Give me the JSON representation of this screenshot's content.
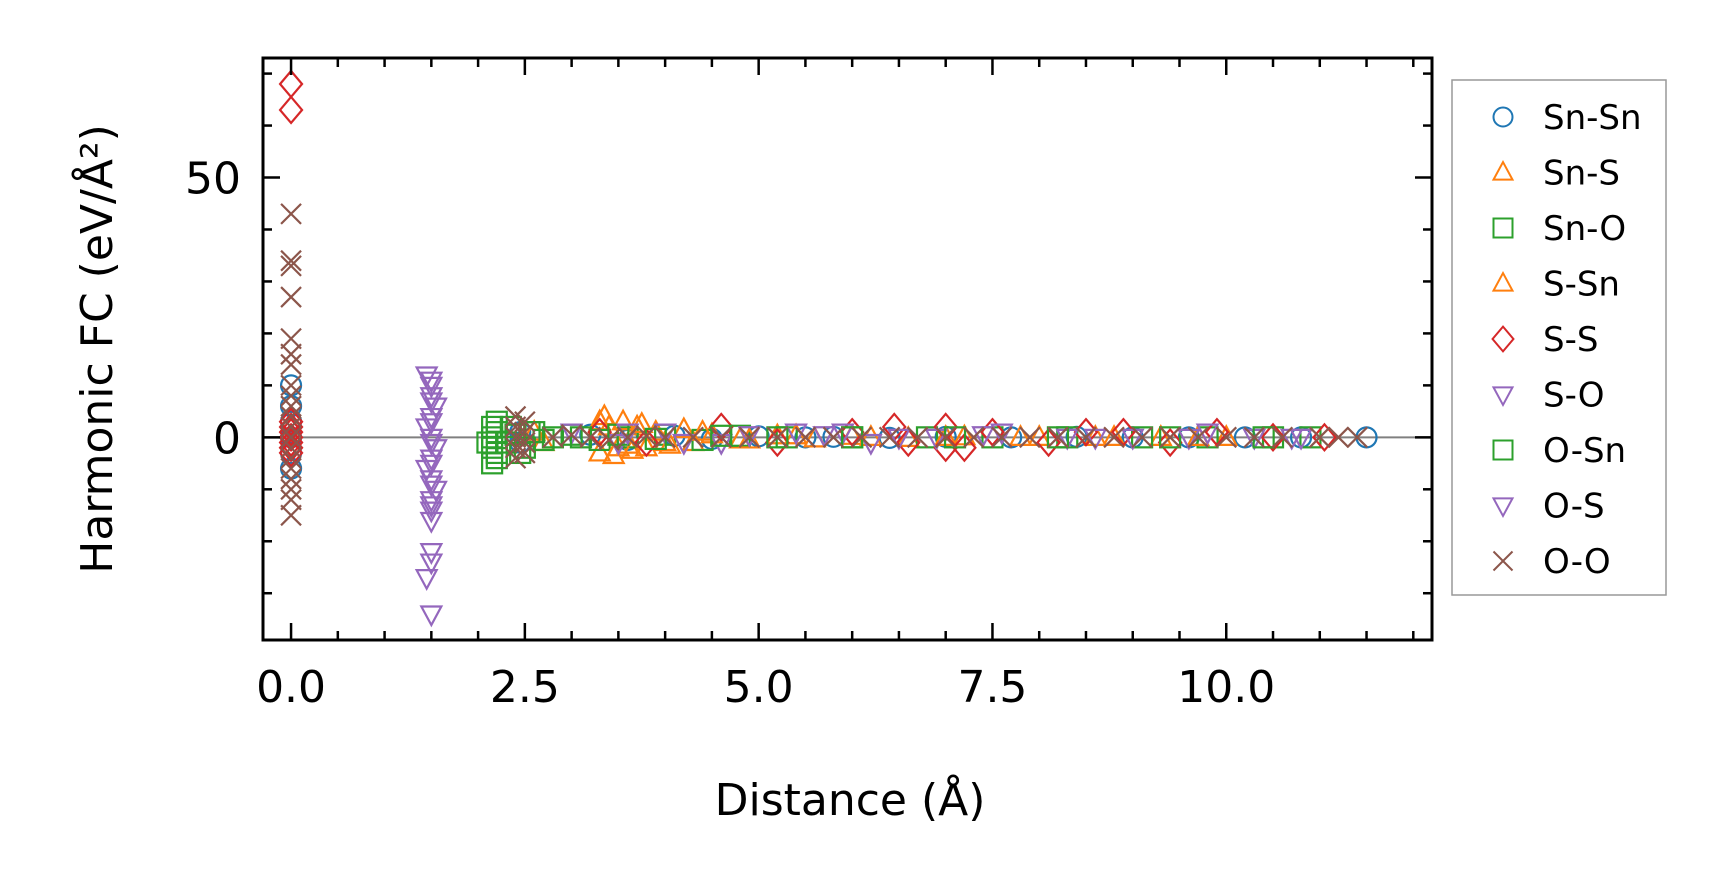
{
  "chart_data": {
    "type": "scatter",
    "title": "",
    "xlabel": "Distance (Å)",
    "ylabel": "Harmonic FC (eV/Å²)",
    "xlim": [
      -0.3,
      12.2
    ],
    "ylim": [
      -39,
      73
    ],
    "x_ticks": [
      {
        "value": 0.0,
        "label": "0.0"
      },
      {
        "value": 2.5,
        "label": "2.5"
      },
      {
        "value": 5.0,
        "label": "5.0"
      },
      {
        "value": 7.5,
        "label": "7.5"
      },
      {
        "value": 10.0,
        "label": "10.0"
      }
    ],
    "y_ticks": [
      {
        "value": 0,
        "label": "0"
      },
      {
        "value": 50,
        "label": "50"
      }
    ],
    "grid": false,
    "zero_line": true,
    "legend": {
      "placement": "outside-right"
    },
    "series": [
      {
        "name": "Sn-Sn",
        "marker": "circle",
        "color": "#1f77b4",
        "points": [
          [
            0.0,
            0
          ],
          [
            0.0,
            6
          ],
          [
            0.0,
            10
          ],
          [
            0.0,
            -6
          ],
          [
            0.0,
            3
          ],
          [
            0.0,
            -3
          ],
          [
            2.45,
            1
          ],
          [
            2.45,
            -1
          ],
          [
            3.2,
            0.5
          ],
          [
            3.6,
            -0.5
          ],
          [
            4.1,
            0.3
          ],
          [
            4.5,
            -0.3
          ],
          [
            5.0,
            0.2
          ],
          [
            5.5,
            0
          ],
          [
            5.8,
            0.1
          ],
          [
            6.4,
            -0.1
          ],
          [
            7.0,
            0.1
          ],
          [
            7.7,
            0
          ],
          [
            8.4,
            0.1
          ],
          [
            9.0,
            0
          ],
          [
            9.6,
            0
          ],
          [
            10.2,
            0
          ],
          [
            10.8,
            0
          ],
          [
            11.5,
            0
          ]
        ]
      },
      {
        "name": "Sn-S",
        "marker": "triangle-up",
        "color": "#ff7f0e",
        "points": [
          [
            2.6,
            1
          ],
          [
            2.7,
            -1
          ],
          [
            3.3,
            3
          ],
          [
            3.3,
            -3
          ],
          [
            3.4,
            2
          ],
          [
            3.5,
            -2
          ],
          [
            3.6,
            -1.5
          ],
          [
            3.7,
            2
          ],
          [
            3.8,
            -2
          ],
          [
            3.9,
            1
          ],
          [
            4.0,
            -1
          ],
          [
            4.2,
            1.5
          ],
          [
            4.3,
            -1
          ],
          [
            4.5,
            0.5
          ],
          [
            4.8,
            -0.5
          ],
          [
            5.2,
            0.3
          ],
          [
            5.6,
            -0.3
          ],
          [
            6.0,
            0.2
          ],
          [
            6.6,
            -0.2
          ],
          [
            7.2,
            0.1
          ],
          [
            7.8,
            0
          ],
          [
            8.6,
            0
          ],
          [
            9.3,
            0
          ],
          [
            10.0,
            0
          ]
        ]
      },
      {
        "name": "Sn-O",
        "marker": "square",
        "color": "#2ca02c",
        "points": [
          [
            2.15,
            2
          ],
          [
            2.15,
            -2
          ],
          [
            2.15,
            -5
          ],
          [
            2.15,
            0
          ],
          [
            2.2,
            -3
          ],
          [
            2.2,
            1
          ],
          [
            2.3,
            -1
          ],
          [
            2.4,
            0.5
          ],
          [
            2.5,
            -2
          ],
          [
            2.6,
            1
          ],
          [
            2.8,
            0
          ],
          [
            3.0,
            0.5
          ],
          [
            3.3,
            -0.5
          ],
          [
            3.6,
            0
          ],
          [
            4.0,
            0.5
          ],
          [
            4.4,
            -0.5
          ],
          [
            4.8,
            0.3
          ],
          [
            5.3,
            0
          ],
          [
            6.0,
            0
          ],
          [
            6.8,
            0
          ],
          [
            7.5,
            0
          ],
          [
            8.3,
            0
          ],
          [
            9.1,
            0
          ],
          [
            9.8,
            0
          ],
          [
            10.5,
            0
          ],
          [
            10.9,
            0
          ]
        ]
      },
      {
        "name": "S-Sn",
        "marker": "triangle-up",
        "color": "#ff7f0e",
        "points": [
          [
            3.35,
            4
          ],
          [
            3.45,
            -3.5
          ],
          [
            3.55,
            3
          ],
          [
            3.65,
            -2.5
          ],
          [
            3.75,
            2.5
          ],
          [
            4.05,
            -1.5
          ],
          [
            4.4,
            1
          ],
          [
            4.9,
            -0.5
          ],
          [
            5.4,
            0.3
          ],
          [
            6.2,
            0
          ],
          [
            7.0,
            0
          ],
          [
            8.0,
            0
          ],
          [
            8.8,
            0
          ],
          [
            9.7,
            0
          ]
        ]
      },
      {
        "name": "S-S",
        "marker": "diamond",
        "color": "#d62728",
        "points": [
          [
            0.0,
            68
          ],
          [
            0.0,
            63
          ],
          [
            0.0,
            3
          ],
          [
            0.0,
            1
          ],
          [
            0.0,
            0
          ],
          [
            0.0,
            -1
          ],
          [
            0.0,
            -2
          ],
          [
            0.0,
            2
          ],
          [
            0.0,
            -3
          ],
          [
            3.3,
            1
          ],
          [
            3.8,
            -1
          ],
          [
            4.6,
            2
          ],
          [
            5.2,
            -1
          ],
          [
            6.0,
            1
          ],
          [
            6.45,
            2
          ],
          [
            6.6,
            -1
          ],
          [
            7.0,
            -2
          ],
          [
            7.0,
            2
          ],
          [
            7.2,
            -2
          ],
          [
            7.5,
            1
          ],
          [
            8.1,
            -1
          ],
          [
            8.5,
            1
          ],
          [
            8.9,
            1
          ],
          [
            9.4,
            -1
          ],
          [
            9.9,
            1
          ],
          [
            10.5,
            0
          ],
          [
            11.05,
            0
          ]
        ]
      },
      {
        "name": "S-O",
        "marker": "triangle-down",
        "color": "#9467bd",
        "points": [
          [
            1.45,
            12
          ],
          [
            1.5,
            10
          ],
          [
            1.5,
            8
          ],
          [
            1.55,
            6
          ],
          [
            1.5,
            4
          ],
          [
            1.45,
            2
          ],
          [
            1.5,
            0
          ],
          [
            1.55,
            -2
          ],
          [
            1.5,
            -4
          ],
          [
            1.45,
            -6
          ],
          [
            1.5,
            -8
          ],
          [
            1.55,
            -10
          ],
          [
            1.5,
            -13
          ],
          [
            1.5,
            -16
          ],
          [
            1.5,
            -22
          ],
          [
            1.5,
            -24
          ],
          [
            1.45,
            -27
          ],
          [
            1.5,
            -34
          ],
          [
            3.0,
            1
          ],
          [
            3.5,
            -1
          ],
          [
            4.0,
            1
          ],
          [
            4.6,
            -1
          ],
          [
            5.4,
            1
          ],
          [
            5.9,
            1
          ],
          [
            6.2,
            -1
          ],
          [
            6.9,
            0
          ],
          [
            7.6,
            1
          ],
          [
            8.3,
            0
          ],
          [
            9.0,
            0
          ],
          [
            9.8,
            1
          ],
          [
            10.3,
            0
          ],
          [
            10.8,
            0
          ]
        ]
      },
      {
        "name": "O-Sn",
        "marker": "square",
        "color": "#2ca02c",
        "points": [
          [
            2.1,
            -1
          ],
          [
            2.2,
            -4
          ],
          [
            2.2,
            3
          ],
          [
            2.35,
            2
          ],
          [
            2.45,
            -3
          ],
          [
            2.55,
            1
          ],
          [
            2.7,
            -0.5
          ],
          [
            3.1,
            0
          ],
          [
            3.5,
            0.5
          ],
          [
            3.9,
            -0.3
          ],
          [
            4.6,
            0.3
          ],
          [
            5.2,
            0
          ],
          [
            6.0,
            0
          ],
          [
            7.1,
            0
          ],
          [
            8.2,
            0
          ],
          [
            9.4,
            0
          ],
          [
            10.4,
            0
          ]
        ]
      },
      {
        "name": "O-S",
        "marker": "triangle-down",
        "color": "#9467bd",
        "points": [
          [
            1.5,
            11
          ],
          [
            1.5,
            7
          ],
          [
            1.5,
            3
          ],
          [
            1.5,
            -1
          ],
          [
            1.5,
            -5
          ],
          [
            1.5,
            -9
          ],
          [
            1.5,
            -12
          ],
          [
            1.5,
            -14
          ],
          [
            3.6,
            1
          ],
          [
            4.2,
            -1
          ],
          [
            4.9,
            0.5
          ],
          [
            5.7,
            0.5
          ],
          [
            6.5,
            0
          ],
          [
            7.4,
            0.5
          ],
          [
            8.6,
            0
          ],
          [
            9.6,
            0
          ],
          [
            10.7,
            0
          ]
        ]
      },
      {
        "name": "O-O",
        "marker": "x",
        "color": "#8c564b",
        "points": [
          [
            0.0,
            43
          ],
          [
            0.0,
            34
          ],
          [
            0.0,
            33
          ],
          [
            0.0,
            27
          ],
          [
            0.0,
            19
          ],
          [
            0.0,
            16
          ],
          [
            0.0,
            14
          ],
          [
            0.0,
            10
          ],
          [
            0.0,
            8
          ],
          [
            0.0,
            6
          ],
          [
            0.0,
            4
          ],
          [
            0.0,
            2
          ],
          [
            0.0,
            0
          ],
          [
            0.0,
            -2
          ],
          [
            0.0,
            -4
          ],
          [
            0.0,
            -6
          ],
          [
            0.0,
            -8
          ],
          [
            0.0,
            -10
          ],
          [
            0.0,
            -12
          ],
          [
            0.0,
            -15
          ],
          [
            2.4,
            4
          ],
          [
            2.4,
            2
          ],
          [
            2.4,
            0
          ],
          [
            2.4,
            -2
          ],
          [
            2.4,
            -4
          ],
          [
            2.5,
            3
          ],
          [
            2.5,
            -3
          ],
          [
            2.5,
            1
          ],
          [
            2.5,
            -1
          ],
          [
            2.8,
            0
          ],
          [
            3.0,
            0.5
          ],
          [
            3.2,
            0
          ],
          [
            3.4,
            -0.5
          ],
          [
            3.6,
            0
          ],
          [
            3.8,
            0.3
          ],
          [
            4.0,
            0
          ],
          [
            4.3,
            0
          ],
          [
            4.6,
            0
          ],
          [
            4.9,
            0
          ],
          [
            5.2,
            0
          ],
          [
            5.5,
            0
          ],
          [
            5.8,
            0
          ],
          [
            6.1,
            0
          ],
          [
            6.4,
            0
          ],
          [
            6.7,
            0
          ],
          [
            7.0,
            0
          ],
          [
            7.3,
            0
          ],
          [
            7.6,
            0
          ],
          [
            7.9,
            0
          ],
          [
            8.2,
            0
          ],
          [
            8.5,
            0
          ],
          [
            8.8,
            0
          ],
          [
            9.1,
            0
          ],
          [
            9.4,
            0
          ],
          [
            9.7,
            0
          ],
          [
            10.0,
            0
          ],
          [
            10.3,
            0
          ],
          [
            10.6,
            0
          ],
          [
            11.0,
            0
          ],
          [
            11.2,
            0
          ],
          [
            11.4,
            0
          ]
        ]
      }
    ]
  }
}
